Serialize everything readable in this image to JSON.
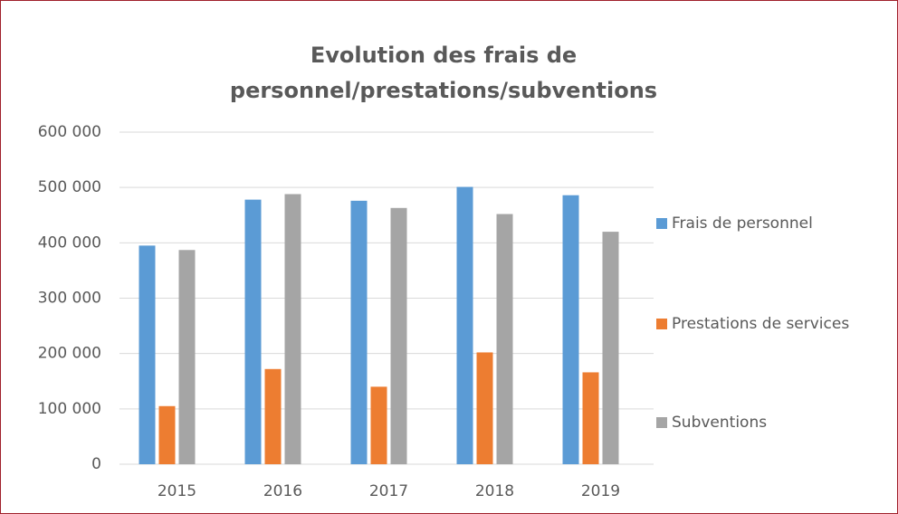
{
  "chart_data": {
    "type": "bar",
    "title": [
      "Evolution des frais de",
      "personnel/prestations/subventions"
    ],
    "categories": [
      "2015",
      "2016",
      "2017",
      "2018",
      "2019"
    ],
    "series": [
      {
        "name": "Frais de personnel",
        "color": "#5b9bd5",
        "values": [
          395000,
          478000,
          476000,
          501000,
          486000
        ]
      },
      {
        "name": "Prestations de services",
        "color": "#ed7d31",
        "values": [
          105000,
          172000,
          140000,
          202000,
          166000
        ]
      },
      {
        "name": "Subventions",
        "color": "#a5a5a5",
        "values": [
          387000,
          488000,
          463000,
          452000,
          420000
        ]
      }
    ],
    "ylim": [
      0,
      600000
    ],
    "yticks": [
      0,
      {
        "value": 100000,
        "label": "100 000"
      },
      {
        "value": 200000,
        "label": "200 000"
      },
      {
        "value": 300000,
        "label": "300 000"
      },
      {
        "value": 400000,
        "label": "400 000"
      },
      {
        "value": 500000,
        "label": "500 000"
      },
      {
        "value": 600000,
        "label": "600 000"
      }
    ],
    "grid": true,
    "legend": "right"
  }
}
